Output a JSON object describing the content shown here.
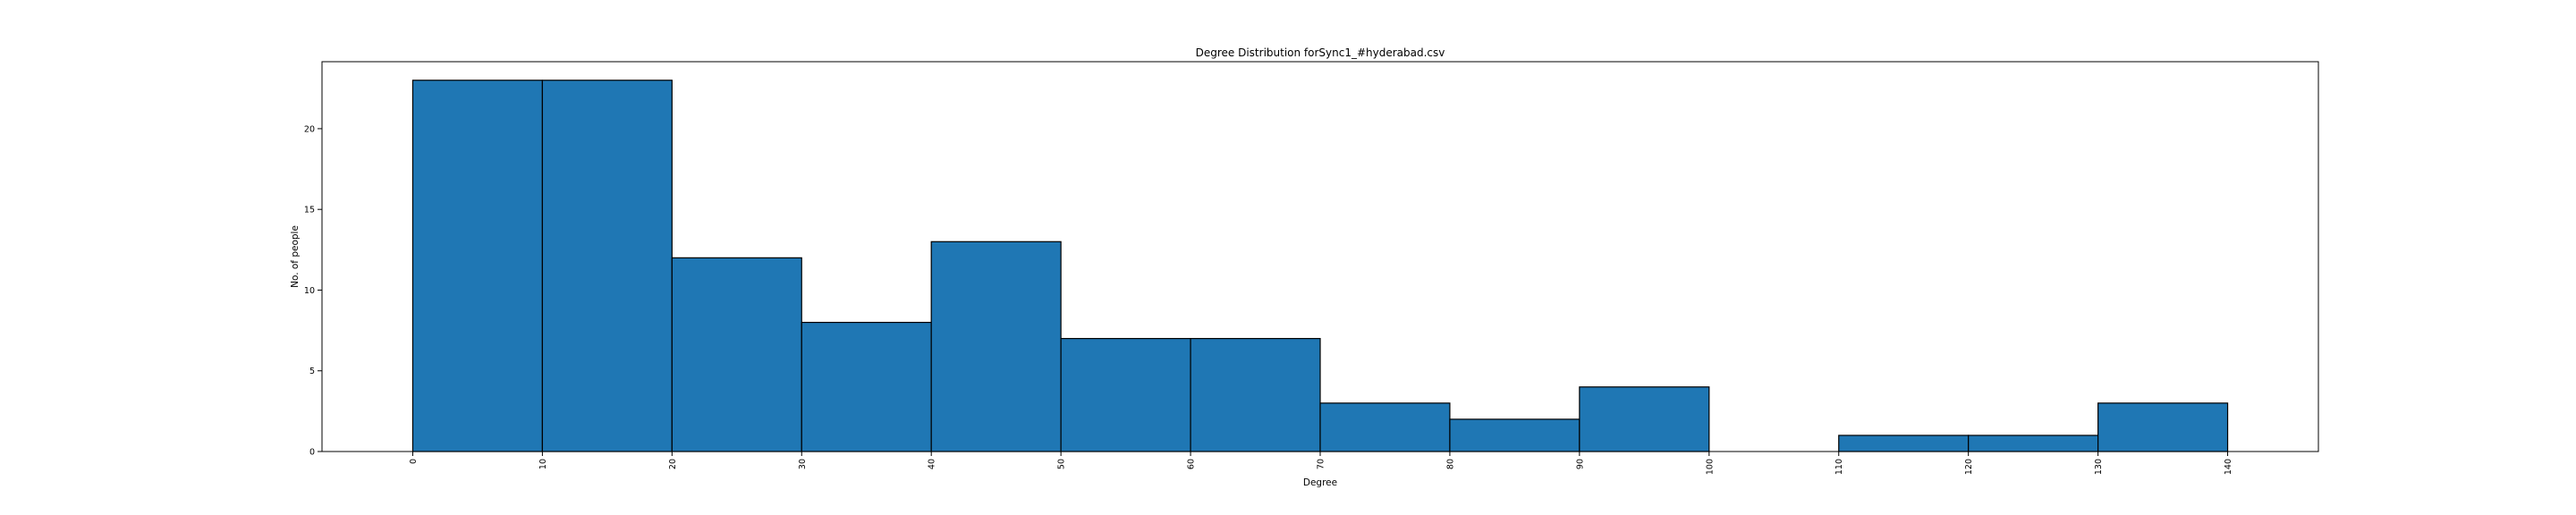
{
  "chart_data": {
    "type": "bar",
    "title": "Degree Distribution forSync1_#hyderabad.csv",
    "xlabel": "Degree",
    "ylabel": "No. of people",
    "bin_edges": [
      0,
      10,
      20,
      30,
      40,
      50,
      60,
      70,
      80,
      90,
      100,
      110,
      120,
      130,
      140
    ],
    "values": [
      23,
      23,
      12,
      8,
      13,
      7,
      7,
      3,
      2,
      4,
      0,
      1,
      1,
      3
    ],
    "xticks": [
      "0",
      "10",
      "20",
      "30",
      "40",
      "50",
      "60",
      "70",
      "80",
      "90",
      "100",
      "110",
      "120",
      "130",
      "140"
    ],
    "yticks": [
      "0",
      "5",
      "10",
      "15",
      "20"
    ],
    "xlim": [
      -7,
      147
    ],
    "ylim": [
      0,
      24.15
    ],
    "bar_color": "#1f77b4",
    "edge_color": "#000000",
    "grid": false,
    "legend": false
  }
}
